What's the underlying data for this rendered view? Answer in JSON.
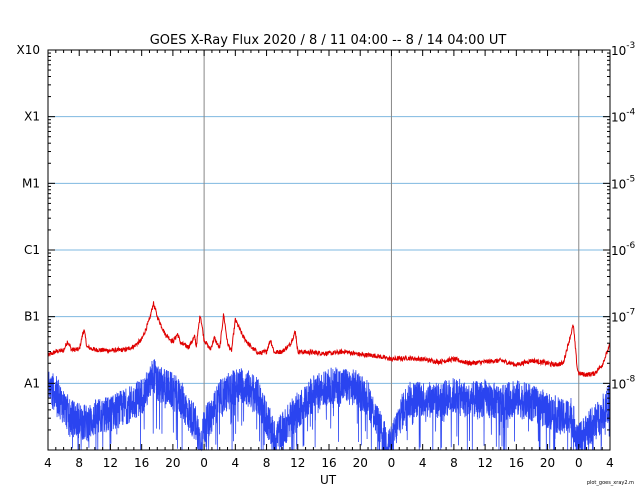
{
  "chart_data": {
    "type": "line",
    "title": "GOES X-Ray Flux   2020 /  8 / 11   04:00 --  8 / 14   04:00   UT",
    "xlabel": "UT",
    "credit": "plot_goes_xray2.m",
    "x_range_hours": [
      0,
      72
    ],
    "x_ticks": [
      {
        "hour": 0,
        "label": "4"
      },
      {
        "hour": 4,
        "label": "8"
      },
      {
        "hour": 8,
        "label": "12"
      },
      {
        "hour": 12,
        "label": "16"
      },
      {
        "hour": 16,
        "label": "20"
      },
      {
        "hour": 20,
        "label": "0"
      },
      {
        "hour": 24,
        "label": "4"
      },
      {
        "hour": 28,
        "label": "8"
      },
      {
        "hour": 32,
        "label": "12"
      },
      {
        "hour": 36,
        "label": "16"
      },
      {
        "hour": 40,
        "label": "20"
      },
      {
        "hour": 44,
        "label": "0"
      },
      {
        "hour": 48,
        "label": "4"
      },
      {
        "hour": 52,
        "label": "8"
      },
      {
        "hour": 56,
        "label": "12"
      },
      {
        "hour": 60,
        "label": "16"
      },
      {
        "hour": 64,
        "label": "20"
      },
      {
        "hour": 68,
        "label": "0"
      },
      {
        "hour": 72,
        "label": "4"
      }
    ],
    "day_boundaries_hours": [
      20,
      44,
      68
    ],
    "y_scale": "log",
    "ylim_log10": [
      -9,
      -3
    ],
    "left_class_labels": [
      {
        "log10": -3,
        "label": "X10"
      },
      {
        "log10": -4,
        "label": "X1"
      },
      {
        "log10": -5,
        "label": "M1"
      },
      {
        "log10": -6,
        "label": "C1"
      },
      {
        "log10": -7,
        "label": "B1"
      },
      {
        "log10": -8,
        "label": "A1"
      }
    ],
    "right_tick_labels": [
      {
        "log10": -3,
        "base": "10",
        "exp": "-3"
      },
      {
        "log10": -4,
        "base": "10",
        "exp": "-4"
      },
      {
        "log10": -5,
        "base": "10",
        "exp": "-5"
      },
      {
        "log10": -6,
        "base": "10",
        "exp": "-6"
      },
      {
        "log10": -7,
        "base": "10",
        "exp": "-7"
      },
      {
        "log10": -8,
        "base": "10",
        "exp": "-8"
      }
    ],
    "grid_horizontal_log10": [
      -4,
      -5,
      -6,
      -7,
      -8
    ],
    "series": [
      {
        "color": "#e00000",
        "points": [
          [
            0,
            2.6e-08
          ],
          [
            1,
            3e-08
          ],
          [
            2,
            3.1e-08
          ],
          [
            2.5,
            4.3e-08
          ],
          [
            3,
            3.2e-08
          ],
          [
            4,
            3.2e-08
          ],
          [
            4.6,
            6.5e-08
          ],
          [
            5,
            3.5e-08
          ],
          [
            6,
            3.2e-08
          ],
          [
            8,
            3.1e-08
          ],
          [
            10,
            3.2e-08
          ],
          [
            11,
            3.6e-08
          ],
          [
            12,
            4.5e-08
          ],
          [
            13,
            9e-08
          ],
          [
            13.5,
            1.6e-07
          ],
          [
            14,
            1e-07
          ],
          [
            15,
            5.5e-08
          ],
          [
            16,
            4.2e-08
          ],
          [
            16.6,
            5.5e-08
          ],
          [
            17,
            4e-08
          ],
          [
            18,
            3.5e-08
          ],
          [
            18.8,
            5e-08
          ],
          [
            19,
            3.6e-08
          ],
          [
            19.5,
            1.1e-07
          ],
          [
            20,
            4.5e-08
          ],
          [
            20.8,
            3.2e-08
          ],
          [
            21.3,
            4.8e-08
          ],
          [
            22,
            3.3e-08
          ],
          [
            22.5,
            1.1e-07
          ],
          [
            23,
            4e-08
          ],
          [
            23.5,
            3e-08
          ],
          [
            24,
            9e-08
          ],
          [
            25,
            5e-08
          ],
          [
            26,
            3.5e-08
          ],
          [
            27,
            2.8e-08
          ],
          [
            28,
            3e-08
          ],
          [
            28.5,
            4.5e-08
          ],
          [
            29,
            2.9e-08
          ],
          [
            30,
            3e-08
          ],
          [
            31,
            3.8e-08
          ],
          [
            31.7,
            6e-08
          ],
          [
            32,
            3e-08
          ],
          [
            34,
            2.9e-08
          ],
          [
            36,
            2.8e-08
          ],
          [
            38,
            3e-08
          ],
          [
            40,
            2.7e-08
          ],
          [
            42,
            2.6e-08
          ],
          [
            44,
            2.3e-08
          ],
          [
            46,
            2.4e-08
          ],
          [
            48,
            2.3e-08
          ],
          [
            50,
            2.1e-08
          ],
          [
            52,
            2.3e-08
          ],
          [
            54,
            2e-08
          ],
          [
            56,
            2.1e-08
          ],
          [
            58,
            2.2e-08
          ],
          [
            60,
            1.9e-08
          ],
          [
            62,
            2.2e-08
          ],
          [
            64,
            2e-08
          ],
          [
            65,
            1.9e-08
          ],
          [
            66,
            2e-08
          ],
          [
            67.3,
            7.5e-08
          ],
          [
            67.8,
            1.7e-08
          ],
          [
            68,
            1.4e-08
          ],
          [
            69,
            1.35e-08
          ],
          [
            70,
            1.4e-08
          ],
          [
            71,
            1.9e-08
          ],
          [
            72,
            3.8e-08
          ]
        ]
      },
      {
        "color": "#2a44f0",
        "points": [
          [
            0,
            9e-09
          ],
          [
            1,
            7e-09
          ],
          [
            2,
            4.5e-09
          ],
          [
            3,
            3e-09
          ],
          [
            4,
            2.8e-09
          ],
          [
            5,
            2.5e-09
          ],
          [
            6,
            3e-09
          ],
          [
            8,
            3.5e-09
          ],
          [
            10,
            4.5e-09
          ],
          [
            12,
            6.5e-09
          ],
          [
            13,
            9e-09
          ],
          [
            13.5,
            1.45e-08
          ],
          [
            14,
            9.5e-09
          ],
          [
            15,
            9e-09
          ],
          [
            16,
            7.5e-09
          ],
          [
            17,
            6e-09
          ],
          [
            18,
            3.5e-09
          ],
          [
            19,
            2.5e-09
          ],
          [
            19.5,
            1.2e-09
          ],
          [
            20,
            2.2e-09
          ],
          [
            21,
            3.5e-09
          ],
          [
            22,
            6e-09
          ],
          [
            24,
            9e-09
          ],
          [
            25,
            9.5e-09
          ],
          [
            26,
            8e-09
          ],
          [
            27,
            6e-09
          ],
          [
            28,
            3e-09
          ],
          [
            29,
            1.5e-09
          ],
          [
            30,
            2e-09
          ],
          [
            32,
            4e-09
          ],
          [
            34,
            7e-09
          ],
          [
            36,
            9e-09
          ],
          [
            38,
            9.5e-09
          ],
          [
            40,
            8e-09
          ],
          [
            41,
            6e-09
          ],
          [
            42,
            3e-09
          ],
          [
            43,
            1.5e-09
          ],
          [
            44,
            1.2e-09
          ],
          [
            45,
            3e-09
          ],
          [
            46,
            5.5e-09
          ],
          [
            48,
            6e-09
          ],
          [
            50,
            5.5e-09
          ],
          [
            52,
            6.5e-09
          ],
          [
            54,
            5.5e-09
          ],
          [
            56,
            6e-09
          ],
          [
            58,
            5e-09
          ],
          [
            60,
            6e-09
          ],
          [
            62,
            5e-09
          ],
          [
            64,
            4e-09
          ],
          [
            66,
            3e-09
          ],
          [
            67,
            3.5e-09
          ],
          [
            68,
            1.3e-09
          ],
          [
            69,
            2e-09
          ],
          [
            70,
            2.5e-09
          ],
          [
            71,
            3.5e-09
          ],
          [
            72,
            5.5e-09
          ]
        ]
      }
    ]
  }
}
